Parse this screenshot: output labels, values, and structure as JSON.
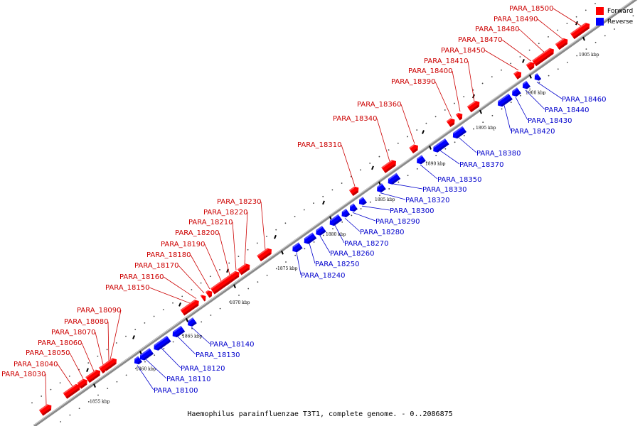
{
  "legend": {
    "forward": {
      "label": "Forward",
      "color": "#ff0000"
    },
    "reverse": {
      "label": "Reverse",
      "color": "#0000ff"
    }
  },
  "caption": "Haemophilus parainfluenzae T3T1, complete genome. - 0..2086875",
  "axis": {
    "kbp_labels": [
      "1855 kbp",
      "1860 kbp",
      "1865 kbp",
      "1870 kbp",
      "1875 kbp",
      "1880 kbp",
      "1885 kbp",
      "1890 kbp",
      "1895 kbp",
      "1900 kbp",
      "1905 kbp"
    ]
  },
  "forward_genes": [
    "PARA_18030",
    "PARA_18040",
    "PARA_18050",
    "PARA_18060",
    "PARA_18070",
    "PARA_18080",
    "PARA_18090",
    "PARA_18150",
    "PARA_18160",
    "PARA_18170",
    "PARA_18180",
    "PARA_18190",
    "PARA_18200",
    "PARA_18210",
    "PARA_18220",
    "PARA_18230",
    "PARA_18310",
    "PARA_18340",
    "PARA_18360",
    "PARA_18390",
    "PARA_18400",
    "PARA_18410",
    "PARA_18450",
    "PARA_18470",
    "PARA_18480",
    "PARA_18490",
    "PARA_18500"
  ],
  "reverse_genes": [
    "PARA_18100",
    "PARA_18110",
    "PARA_18120",
    "PARA_18130",
    "PARA_18140",
    "PARA_18240",
    "PARA_18250",
    "PARA_18260",
    "PARA_18270",
    "PARA_18280",
    "PARA_18290",
    "PARA_18300",
    "PARA_18320",
    "PARA_18330",
    "PARA_18350",
    "PARA_18370",
    "PARA_18380",
    "PARA_18420",
    "PARA_18430",
    "PARA_18440",
    "PARA_18460"
  ],
  "colors": {
    "forward": "#ff0000",
    "reverse": "#0000ff",
    "backbone": "#999999"
  }
}
